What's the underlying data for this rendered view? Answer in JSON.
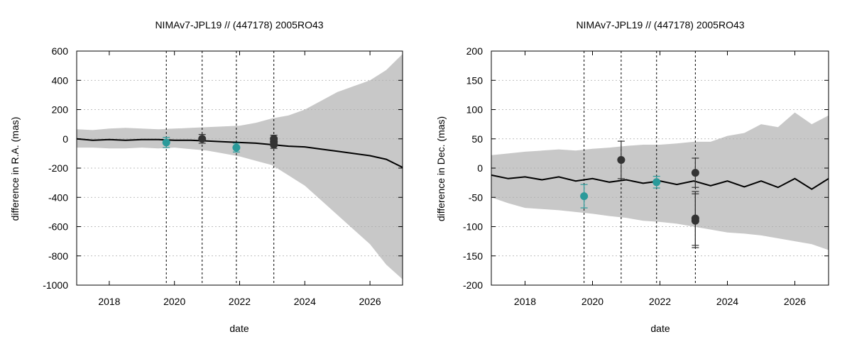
{
  "chart_data": [
    {
      "type": "line",
      "title": "NIMAv7-JPL19 // (447178) 2005RO43",
      "xlabel": "date",
      "ylabel": "difference in R.A. (mas)",
      "xlim": [
        2017,
        2027
      ],
      "ylim": [
        -1000,
        600
      ],
      "xticks": [
        2018,
        2020,
        2022,
        2024,
        2026
      ],
      "yticks": [
        -1000,
        -800,
        -600,
        -400,
        -200,
        0,
        200,
        400,
        600
      ],
      "grid": true,
      "colors": {
        "band": "#c8c8c8",
        "line": "#000000",
        "teal": "#2a9a9a",
        "dark": "#333333"
      },
      "vlines": [
        2019.75,
        2020.85,
        2021.9,
        2023.05
      ],
      "band": {
        "x": [
          2017,
          2017.5,
          2018,
          2018.5,
          2019,
          2019.5,
          2020,
          2020.5,
          2021,
          2021.5,
          2022,
          2022.5,
          2023,
          2023.5,
          2024,
          2024.5,
          2025,
          2025.5,
          2026,
          2026.5,
          2027
        ],
        "upper": [
          65,
          60,
          70,
          75,
          70,
          65,
          70,
          75,
          80,
          85,
          90,
          110,
          140,
          160,
          200,
          260,
          320,
          360,
          400,
          470,
          580
        ],
        "lower": [
          -60,
          -60,
          -65,
          -65,
          -60,
          -65,
          -60,
          -70,
          -80,
          -100,
          -120,
          -150,
          -180,
          -250,
          -320,
          -420,
          -520,
          -620,
          -720,
          -860,
          -960
        ]
      },
      "line": {
        "x": [
          2017,
          2017.5,
          2018,
          2018.5,
          2019,
          2019.5,
          2020,
          2020.5,
          2021,
          2021.5,
          2022,
          2022.5,
          2023,
          2023.5,
          2024,
          2024.5,
          2025,
          2025.5,
          2026,
          2026.5,
          2027
        ],
        "y": [
          0,
          -10,
          -5,
          -10,
          -5,
          -5,
          -10,
          -10,
          -15,
          -20,
          -25,
          -30,
          -40,
          -50,
          -55,
          -70,
          -85,
          -100,
          -115,
          -140,
          -195
        ]
      },
      "points": [
        {
          "x": 2019.75,
          "y": -25,
          "err": 35,
          "color": "teal"
        },
        {
          "x": 2020.85,
          "y": 0,
          "err": 30,
          "color": "dark"
        },
        {
          "x": 2021.9,
          "y": -60,
          "err": 30,
          "color": "teal"
        },
        {
          "x": 2023.05,
          "y": 0,
          "err": 25,
          "color": "dark"
        },
        {
          "x": 2023.05,
          "y": -20,
          "err": 25,
          "color": "dark"
        },
        {
          "x": 2023.05,
          "y": -40,
          "err": 25,
          "color": "dark"
        }
      ]
    },
    {
      "type": "line",
      "title": "NIMAv7-JPL19 // (447178) 2005RO43",
      "xlabel": "date",
      "ylabel": "difference in Dec. (mas)",
      "xlim": [
        2017,
        2027
      ],
      "ylim": [
        -200,
        200
      ],
      "xticks": [
        2018,
        2020,
        2022,
        2024,
        2026
      ],
      "yticks": [
        -200,
        -150,
        -100,
        -50,
        0,
        50,
        100,
        150,
        200
      ],
      "grid": true,
      "colors": {
        "band": "#c8c8c8",
        "line": "#000000",
        "teal": "#2a9a9a",
        "dark": "#333333"
      },
      "vlines": [
        2019.75,
        2020.85,
        2021.9,
        2023.05
      ],
      "band": {
        "x": [
          2017,
          2017.5,
          2018,
          2018.5,
          2019,
          2019.5,
          2020,
          2020.5,
          2021,
          2021.5,
          2022,
          2022.5,
          2023,
          2023.5,
          2024,
          2024.5,
          2025,
          2025.5,
          2026,
          2026.5,
          2027
        ],
        "upper": [
          22,
          25,
          28,
          30,
          32,
          30,
          33,
          35,
          38,
          40,
          40,
          42,
          45,
          45,
          55,
          60,
          75,
          70,
          95,
          75,
          90
        ],
        "lower": [
          -50,
          -60,
          -68,
          -70,
          -72,
          -75,
          -78,
          -82,
          -85,
          -90,
          -92,
          -95,
          -100,
          -105,
          -110,
          -112,
          -115,
          -120,
          -125,
          -130,
          -140
        ]
      },
      "line": {
        "x": [
          2017,
          2017.5,
          2018,
          2018.5,
          2019,
          2019.5,
          2020,
          2020.5,
          2021,
          2021.5,
          2022,
          2022.5,
          2023,
          2023.5,
          2024,
          2024.5,
          2025,
          2025.5,
          2026,
          2026.5,
          2027
        ],
        "y": [
          -12,
          -18,
          -15,
          -20,
          -15,
          -22,
          -18,
          -24,
          -20,
          -26,
          -22,
          -28,
          -22,
          -30,
          -22,
          -32,
          -22,
          -33,
          -18,
          -36,
          -18
        ]
      },
      "points": [
        {
          "x": 2019.75,
          "y": -48,
          "err": 20,
          "color": "teal"
        },
        {
          "x": 2020.85,
          "y": 14,
          "err": 32,
          "color": "dark"
        },
        {
          "x": 2021.9,
          "y": -24,
          "err": 10,
          "color": "teal"
        },
        {
          "x": 2023.05,
          "y": -8,
          "err": 25,
          "color": "dark"
        },
        {
          "x": 2023.05,
          "y": -86,
          "err": 46,
          "color": "dark"
        },
        {
          "x": 2023.05,
          "y": -90,
          "err": 46,
          "color": "dark"
        }
      ]
    }
  ]
}
